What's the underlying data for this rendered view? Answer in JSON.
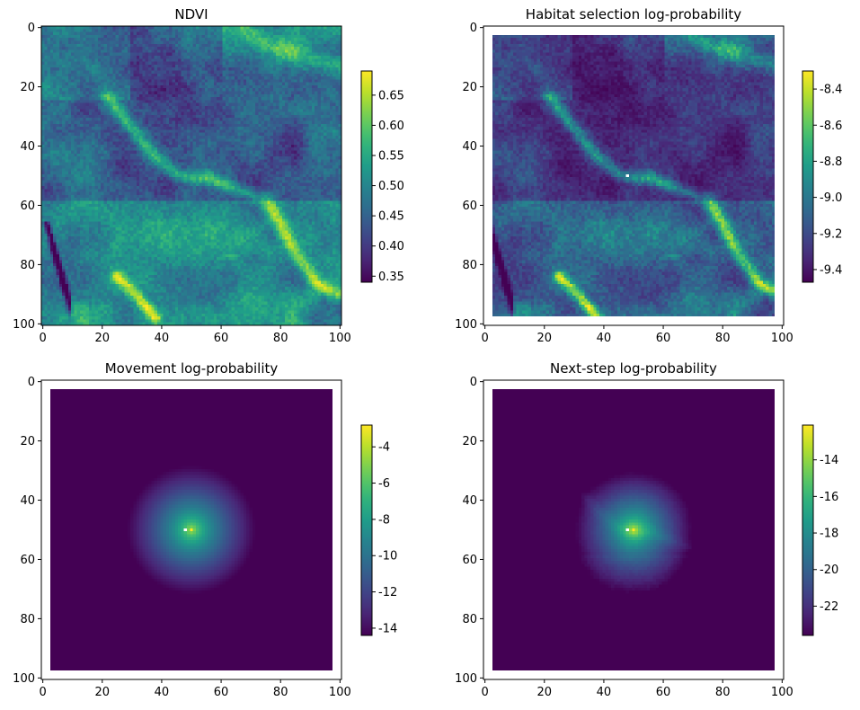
{
  "figure": {
    "layout": "2x2 grid of heatmap panels, each with a vertical colorbar on the right",
    "colormap": "viridis"
  },
  "chart_data": [
    {
      "type": "heatmap",
      "title": "NDVI",
      "xlabel": "",
      "ylabel": "",
      "xlim": [
        0,
        101
      ],
      "ylim": [
        101,
        0
      ],
      "xticks": [
        "0",
        "20",
        "40",
        "60",
        "80",
        "100"
      ],
      "yticks": [
        "0",
        "20",
        "40",
        "60",
        "80",
        "100"
      ],
      "colorbar": {
        "range": [
          0.34,
          0.69
        ],
        "ticks": [
          "0.35",
          "0.40",
          "0.45",
          "0.50",
          "0.55",
          "0.60",
          "0.65"
        ]
      },
      "grid": false,
      "white_border_cells": 0,
      "description_values": {
        "min": 0.34,
        "max": 0.69
      }
    },
    {
      "type": "heatmap",
      "title": "Habitat selection log-probability",
      "xlabel": "",
      "ylabel": "",
      "xlim": [
        0,
        101
      ],
      "ylim": [
        101,
        0
      ],
      "xticks": [
        "0",
        "20",
        "40",
        "60",
        "80",
        "100"
      ],
      "yticks": [
        "0",
        "20",
        "40",
        "60",
        "80",
        "100"
      ],
      "colorbar": {
        "range": [
          -9.47,
          -8.3
        ],
        "ticks": [
          "-8.4",
          "-8.6",
          "-8.8",
          "-9.0",
          "-9.2",
          "-9.4"
        ]
      },
      "grid": false,
      "white_border_cells": 3,
      "center_marker": [
        48,
        50
      ]
    },
    {
      "type": "heatmap",
      "title": "Movement log-probability",
      "xlabel": "",
      "ylabel": "",
      "xlim": [
        0,
        101
      ],
      "ylim": [
        101,
        0
      ],
      "xticks": [
        "0",
        "20",
        "40",
        "60",
        "80",
        "100"
      ],
      "yticks": [
        "0",
        "20",
        "40",
        "60",
        "80",
        "100"
      ],
      "colorbar": {
        "range": [
          -14.4,
          -2.8
        ],
        "ticks": [
          "-4",
          "-6",
          "-8",
          "-10",
          "-12",
          "-14"
        ]
      },
      "grid": false,
      "white_border_cells": 3,
      "center_marker": [
        48,
        50
      ]
    },
    {
      "type": "heatmap",
      "title": "Next-step log-probability",
      "xlabel": "",
      "ylabel": "",
      "xlim": [
        0,
        101
      ],
      "ylim": [
        101,
        0
      ],
      "xticks": [
        "0",
        "20",
        "40",
        "60",
        "80",
        "100"
      ],
      "yticks": [
        "0",
        "20",
        "40",
        "60",
        "80",
        "100"
      ],
      "colorbar": {
        "range": [
          -23.6,
          -12.1
        ],
        "ticks": [
          "-14",
          "-16",
          "-18",
          "-20",
          "-22"
        ]
      },
      "grid": false,
      "white_border_cells": 3,
      "center_marker": [
        48,
        50
      ]
    }
  ]
}
